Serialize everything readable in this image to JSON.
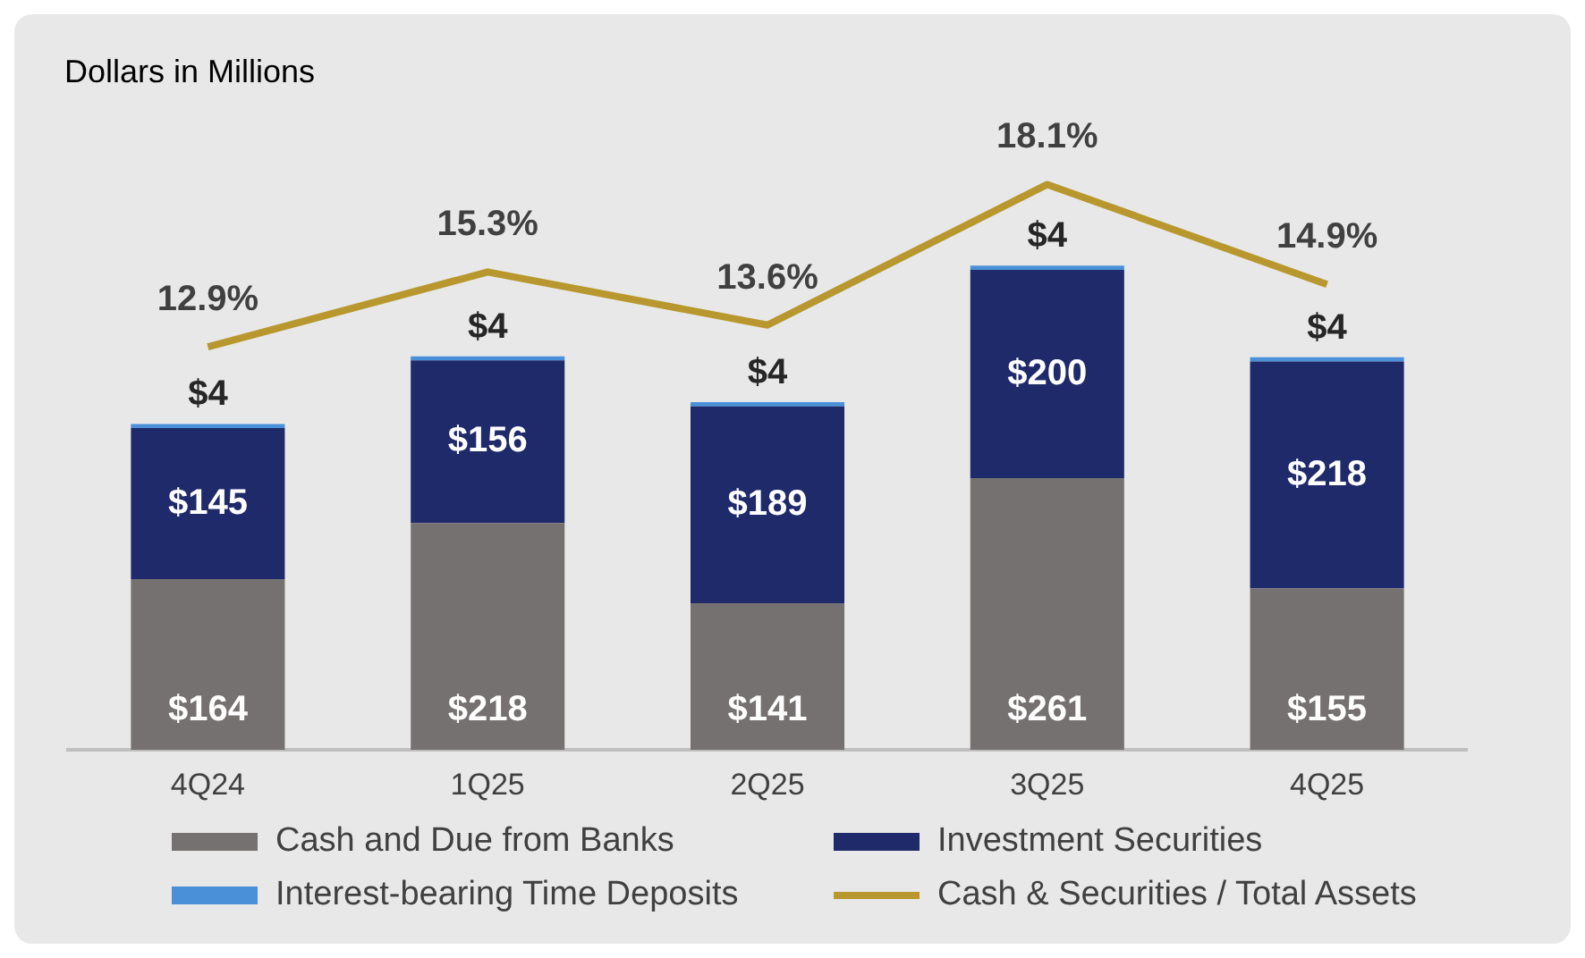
{
  "chart_data": {
    "type": "bar",
    "title": "Dollars in Millions",
    "categories": [
      "4Q24",
      "1Q25",
      "2Q25",
      "3Q25",
      "4Q25"
    ],
    "stacked": true,
    "tick_labels": "x",
    "grid": false,
    "legend": "bottom",
    "series": [
      {
        "name": "Cash and Due from Banks",
        "color": "#767171",
        "values": [
          164,
          218,
          141,
          261,
          155
        ],
        "value_labels": [
          "$164",
          "$218",
          "$141",
          "$261",
          "$155"
        ]
      },
      {
        "name": "Investment Securities",
        "color": "#1f2a6b",
        "values": [
          145,
          156,
          189,
          200,
          218
        ],
        "value_labels": [
          "$145",
          "$156",
          "$189",
          "$200",
          "$218"
        ]
      },
      {
        "name": "Interest-bearing Time Deposits",
        "color": "#4a90d9",
        "values": [
          4,
          4,
          4,
          4,
          4
        ],
        "value_labels": [
          "$4",
          "$4",
          "$4",
          "$4",
          "$4"
        ]
      },
      {
        "name": "Cash & Securities / Total Assets",
        "type": "line",
        "axis": "y2",
        "color": "#b8982e",
        "values": [
          12.9,
          15.3,
          13.6,
          18.1,
          14.9
        ],
        "value_labels": [
          "12.9%",
          "15.3%",
          "13.6%",
          "18.1%",
          "14.9%"
        ]
      }
    ]
  }
}
